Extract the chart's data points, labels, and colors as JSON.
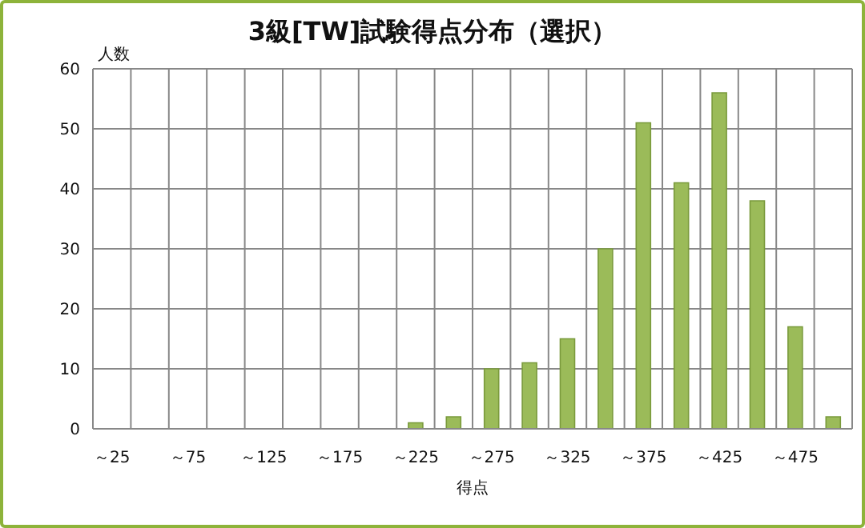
{
  "chart_data": {
    "type": "bar",
    "title": "3級[TW]試験得点分布（選択）",
    "xlabel": "得点",
    "ylabel": "人数",
    "categories": [
      "～25",
      null,
      "～75",
      null,
      "～125",
      null,
      "～175",
      null,
      "～225",
      null,
      "～275",
      null,
      "～325",
      null,
      "～375",
      null,
      "～425",
      null,
      "～475",
      null
    ],
    "values": [
      0,
      0,
      0,
      0,
      0,
      0,
      0,
      0,
      1,
      2,
      10,
      11,
      15,
      30,
      51,
      41,
      56,
      38,
      17,
      2
    ],
    "color": "#9bbb59",
    "ylim": [
      0,
      60
    ],
    "yticks": [
      0,
      10,
      20,
      30,
      40,
      50,
      60
    ],
    "grid": true
  }
}
